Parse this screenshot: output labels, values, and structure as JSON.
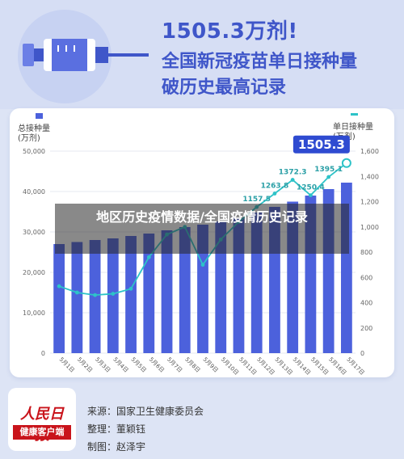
{
  "headline": {
    "number": "1505.3万剂!",
    "line1": "全国新冠疫苗单日接种量",
    "line2": "破历史最高记录"
  },
  "legend": {
    "left_label_1": "总接种量",
    "left_label_2": "(万剂)",
    "right_label_1": "单日接种量",
    "right_label_2": "(万剂)"
  },
  "overlay": {
    "text": "地区历史疫情数据/全国疫情历史记录"
  },
  "footer": {
    "logo_text": "人民日报",
    "logo_sub": "健康客户端",
    "source": "来源：国家卫生健康委员会",
    "editor": "整理：董颖钰",
    "designer": "制图：赵泽宇"
  },
  "colors": {
    "bar": "#4c61dc",
    "line": "#2dc3c8",
    "headline": "#3f56c9",
    "callout_bg": "#2f4bd1"
  },
  "chart_data": {
    "type": "bar",
    "categories": [
      "5月1日",
      "5月2日",
      "5月3日",
      "5月4日",
      "5月5日",
      "5月6日",
      "5月7日",
      "5月8日",
      "5月9日",
      "5月10日",
      "5月11日",
      "5月12日",
      "5月13日",
      "5月14日",
      "5月15日",
      "5月16日",
      "5月17日"
    ],
    "series": [
      {
        "type": "bar",
        "axis": "left",
        "values": [
          27000,
          27500,
          28000,
          28400,
          29000,
          29600,
          30400,
          31200,
          31800,
          32600,
          33500,
          34800,
          36200,
          37500,
          39000,
          40600,
          42200
        ]
      },
      {
        "type": "line",
        "axis": "right",
        "values": [
          530,
          480,
          460,
          470,
          510,
          760,
          940,
          1000,
          700,
          900,
          1040,
          1157.5,
          1263.8,
          1372.3,
          1250.4,
          1395.1,
          1505.3
        ]
      }
    ],
    "labeled_points": [
      {
        "index": 11,
        "label": "1157.5"
      },
      {
        "index": 12,
        "label": "1263.8"
      },
      {
        "index": 13,
        "label": "1372.3"
      },
      {
        "index": 14,
        "label": "1250.4"
      },
      {
        "index": 15,
        "label": "1395.1"
      },
      {
        "index": 16,
        "label": "1505.3"
      }
    ],
    "y_left": {
      "ylim": [
        0,
        50000
      ],
      "ticks": [
        "0",
        "10,000",
        "20,000",
        "30,000",
        "40,000",
        "50,000"
      ]
    },
    "y_right": {
      "ylim": [
        0,
        1600
      ],
      "ticks": [
        "0",
        "200",
        "400",
        "600",
        "800",
        "1,000",
        "1,200",
        "1,400",
        "1,600"
      ]
    },
    "grid": true
  }
}
